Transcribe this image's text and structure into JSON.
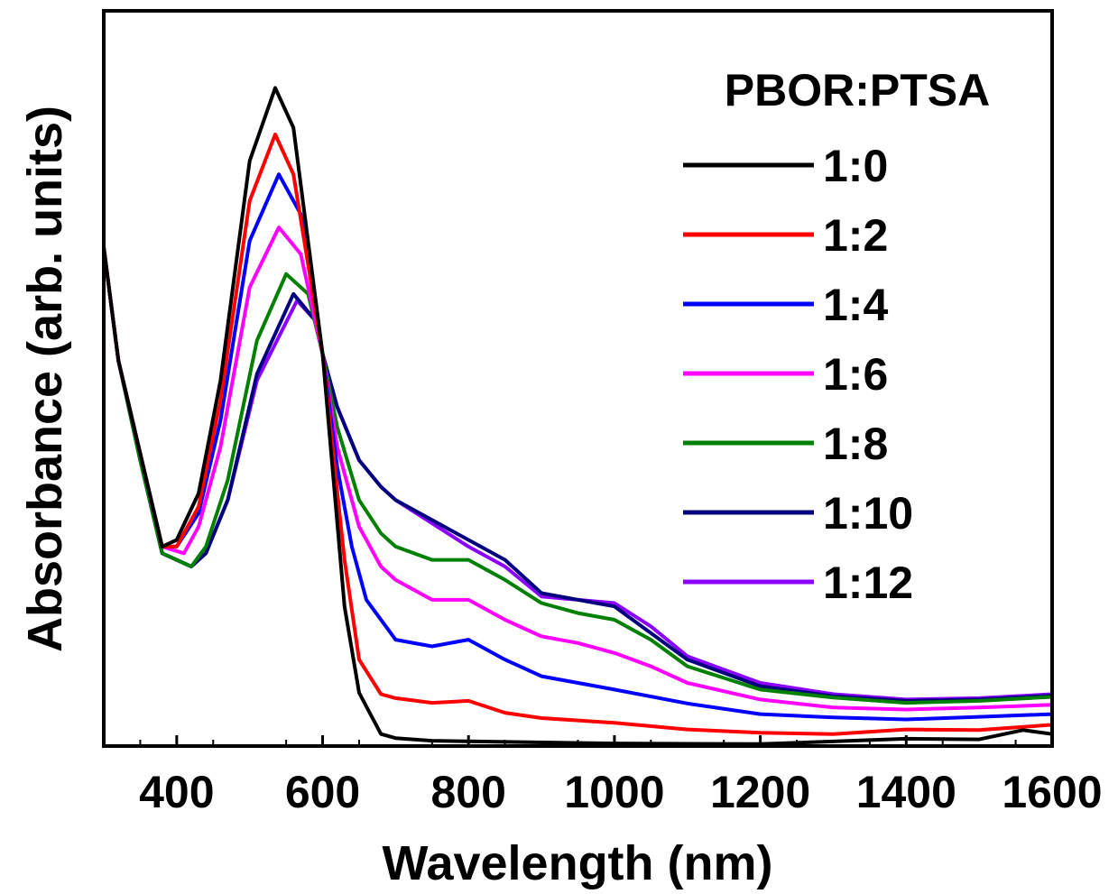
{
  "chart_data": {
    "type": "line",
    "title": "",
    "xlabel": "Wavelength (nm)",
    "ylabel": "Absorbance (arb. units)",
    "xlim": [
      300,
      1600
    ],
    "ylim": [
      0,
      1.0
    ],
    "xticks": [
      400,
      600,
      800,
      1000,
      1200,
      1400,
      1600
    ],
    "grid": false,
    "legend": {
      "title": "PBOR:PTSA",
      "placement": "top-right"
    },
    "series": [
      {
        "name": "1:0",
        "color": "#000000",
        "x": [
          300,
          320,
          350,
          380,
          400,
          430,
          460,
          500,
          535,
          560,
          600,
          630,
          650,
          680,
          700,
          750,
          800,
          1000,
          1200,
          1400,
          1500,
          1560,
          1600
        ],
        "y": [
          0.75,
          0.58,
          0.44,
          0.3,
          0.31,
          0.38,
          0.55,
          0.88,
          0.99,
          0.93,
          0.59,
          0.21,
          0.08,
          0.018,
          0.012,
          0.008,
          0.007,
          0.004,
          0.003,
          0.011,
          0.01,
          0.024,
          0.018
        ]
      },
      {
        "name": "1:2",
        "color": "#ff0000",
        "x": [
          300,
          320,
          350,
          380,
          400,
          430,
          460,
          500,
          535,
          560,
          600,
          630,
          650,
          680,
          700,
          750,
          800,
          850,
          900,
          1000,
          1100,
          1200,
          1300,
          1400,
          1500,
          1600
        ],
        "y": [
          0.75,
          0.58,
          0.44,
          0.3,
          0.3,
          0.36,
          0.52,
          0.82,
          0.92,
          0.86,
          0.59,
          0.28,
          0.13,
          0.078,
          0.072,
          0.065,
          0.068,
          0.05,
          0.042,
          0.035,
          0.025,
          0.02,
          0.018,
          0.025,
          0.024,
          0.032
        ]
      },
      {
        "name": "1:4",
        "color": "#0000ff",
        "x": [
          300,
          320,
          350,
          380,
          400,
          430,
          460,
          500,
          540,
          570,
          600,
          620,
          640,
          660,
          700,
          750,
          800,
          850,
          900,
          950,
          1000,
          1100,
          1200,
          1300,
          1400,
          1500,
          1600
        ],
        "y": [
          0.75,
          0.58,
          0.44,
          0.3,
          0.3,
          0.35,
          0.49,
          0.76,
          0.86,
          0.8,
          0.59,
          0.42,
          0.3,
          0.22,
          0.16,
          0.15,
          0.16,
          0.13,
          0.105,
          0.095,
          0.085,
          0.064,
          0.048,
          0.043,
          0.04,
          0.044,
          0.048
        ]
      },
      {
        "name": "1:6",
        "color": "#ff00ff",
        "x": [
          300,
          320,
          350,
          380,
          410,
          430,
          460,
          500,
          540,
          570,
          600,
          620,
          650,
          680,
          700,
          750,
          800,
          850,
          900,
          950,
          1000,
          1050,
          1100,
          1200,
          1300,
          1400,
          1500,
          1600
        ],
        "y": [
          0.75,
          0.58,
          0.44,
          0.3,
          0.29,
          0.33,
          0.45,
          0.69,
          0.78,
          0.74,
          0.59,
          0.45,
          0.33,
          0.27,
          0.25,
          0.22,
          0.22,
          0.19,
          0.165,
          0.155,
          0.14,
          0.12,
          0.095,
          0.07,
          0.058,
          0.055,
          0.058,
          0.062
        ]
      },
      {
        "name": "1:8",
        "color": "#008000",
        "x": [
          300,
          320,
          350,
          380,
          420,
          440,
          470,
          510,
          550,
          580,
          600,
          620,
          650,
          680,
          700,
          750,
          800,
          850,
          900,
          950,
          1000,
          1050,
          1100,
          1200,
          1300,
          1400,
          1500,
          1600
        ],
        "y": [
          0.75,
          0.58,
          0.43,
          0.29,
          0.27,
          0.3,
          0.4,
          0.61,
          0.71,
          0.68,
          0.59,
          0.48,
          0.37,
          0.32,
          0.3,
          0.28,
          0.28,
          0.25,
          0.215,
          0.2,
          0.19,
          0.16,
          0.12,
          0.085,
          0.073,
          0.065,
          0.068,
          0.074
        ]
      },
      {
        "name": "1:10",
        "color": "#00007f",
        "x": [
          300,
          320,
          350,
          380,
          420,
          440,
          470,
          510,
          560,
          590,
          600,
          620,
          650,
          680,
          700,
          750,
          800,
          850,
          900,
          950,
          1000,
          1050,
          1100,
          1200,
          1300,
          1400,
          1500,
          1600
        ],
        "y": [
          0.75,
          0.58,
          0.43,
          0.29,
          0.27,
          0.29,
          0.37,
          0.56,
          0.68,
          0.64,
          0.59,
          0.51,
          0.43,
          0.39,
          0.37,
          0.34,
          0.31,
          0.28,
          0.23,
          0.22,
          0.21,
          0.17,
          0.13,
          0.09,
          0.075,
          0.068,
          0.07,
          0.076
        ]
      },
      {
        "name": "1:12",
        "color": "#8b00ff",
        "x": [
          300,
          320,
          350,
          380,
          420,
          440,
          470,
          510,
          565,
          590,
          600,
          620,
          650,
          680,
          700,
          750,
          800,
          850,
          900,
          950,
          1000,
          1050,
          1100,
          1200,
          1300,
          1400,
          1500,
          1600
        ],
        "y": [
          0.75,
          0.58,
          0.43,
          0.29,
          0.27,
          0.29,
          0.37,
          0.55,
          0.67,
          0.64,
          0.59,
          0.51,
          0.43,
          0.39,
          0.37,
          0.335,
          0.3,
          0.27,
          0.225,
          0.22,
          0.215,
          0.18,
          0.135,
          0.095,
          0.078,
          0.07,
          0.072,
          0.078
        ]
      }
    ]
  }
}
